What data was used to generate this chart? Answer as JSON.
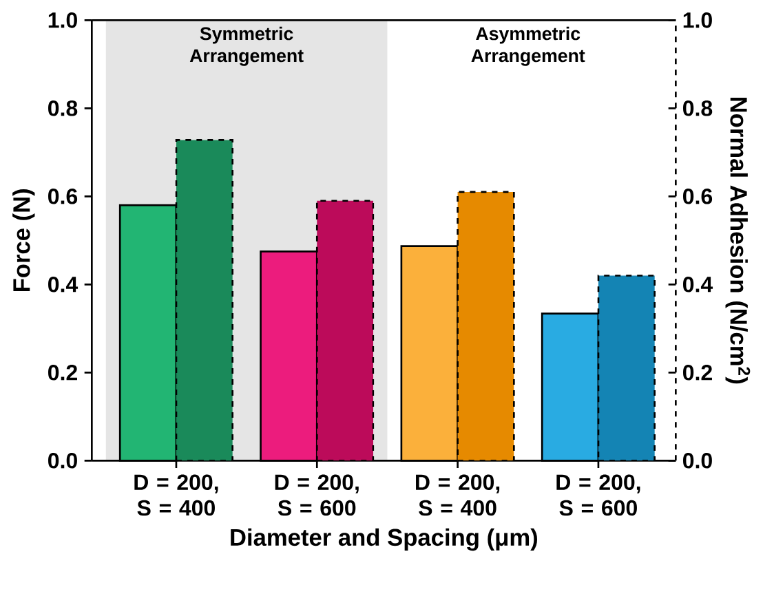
{
  "chart_data": {
    "type": "bar",
    "xlabel": "Diameter and Spacing (μm)",
    "ylabel": "Force (N)",
    "y2label": "Normal Adhesion (N/cm$^{2}$)",
    "categories": [
      "D = 200, S = 400",
      "D = 200, S = 600",
      "D = 200, S = 400",
      "D = 200, S = 600"
    ],
    "series": [
      {
        "values": [
          0.58,
          0.475,
          0.487,
          0.334
        ],
        "colors": [
          "#22b573",
          "#ec1c7d",
          "#fbb03b",
          "#29abe2"
        ],
        "line_style": "solid"
      },
      {
        "values": [
          0.728,
          0.59,
          0.61,
          0.42
        ],
        "colors": [
          "#1a8a5a",
          "#bc0b5a",
          "#e68a00",
          "#1484b4"
        ],
        "line_style": "dashed",
        "axis": "y2"
      }
    ],
    "ylim": [
      0,
      1
    ],
    "yticks": [
      {
        "value": 0,
        "label": "0.0"
      },
      {
        "value": 0.2,
        "label": "0.2"
      },
      {
        "value": 0.4,
        "label": "0.4"
      },
      {
        "value": 0.6,
        "label": "0.6"
      },
      {
        "value": 0.8,
        "label": "0.8"
      },
      {
        "value": 1,
        "label": "1.0"
      }
    ],
    "y2lim": [
      0,
      1
    ],
    "y2ticks": [
      {
        "value": 0,
        "label": "0.0"
      },
      {
        "value": 0.2,
        "label": "0.2"
      },
      {
        "value": 0.4,
        "label": "0.4"
      },
      {
        "value": 0.6,
        "label": "0.6"
      },
      {
        "value": 0.8,
        "label": "0.8"
      },
      {
        "value": 1,
        "label": "1.0"
      }
    ],
    "annotations": [
      "Symmetric Arrangement",
      "Asymmetric Arrangement"
    ]
  }
}
